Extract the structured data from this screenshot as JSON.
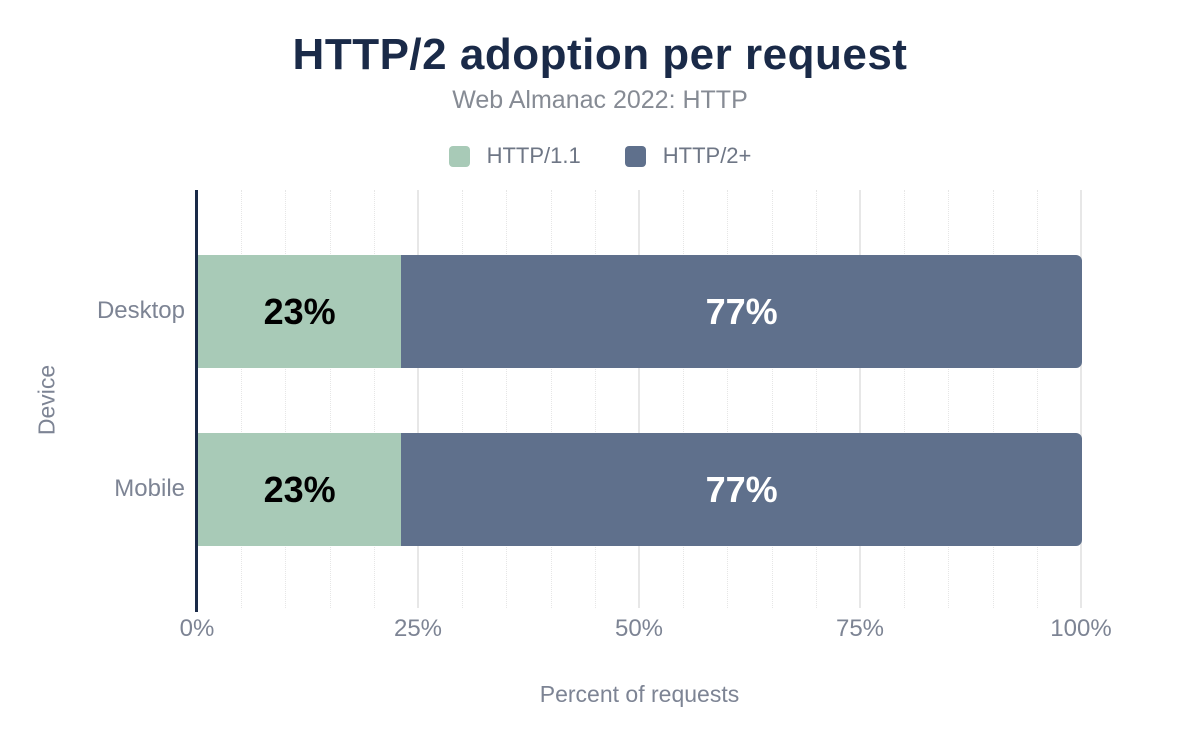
{
  "chart_data": {
    "type": "bar",
    "orientation": "horizontal",
    "stacked": true,
    "title": "HTTP/2 adoption per request",
    "subtitle": "Web Almanac 2022: HTTP",
    "categories": [
      "Desktop",
      "Mobile"
    ],
    "series": [
      {
        "name": "HTTP/1.1",
        "color": "#a8cab7",
        "label_color": "#000000",
        "values": [
          23,
          23
        ],
        "labels": [
          "23%",
          "23%"
        ]
      },
      {
        "name": "HTTP/2+",
        "color": "#5f708c",
        "label_color": "#ffffff",
        "values": [
          77,
          77
        ],
        "labels": [
          "77%",
          "77%"
        ]
      }
    ],
    "xlabel": "Percent of requests",
    "ylabel": "Device",
    "xlim": [
      0,
      100
    ],
    "x_ticks": [
      {
        "label": "0%",
        "value": 0
      },
      {
        "label": "25%",
        "value": 25
      },
      {
        "label": "50%",
        "value": 50
      },
      {
        "label": "75%",
        "value": 75
      },
      {
        "label": "100%",
        "value": 100
      }
    ],
    "grid": {
      "major_step": 25,
      "minor_step": 5,
      "minor_style": "dotted"
    },
    "legend_position": "top"
  },
  "palette": {
    "title_navy": "#1a2a48",
    "axis_line_navy": "#1a2a48",
    "subtitle_gray": "#868b94",
    "tick_gray": "#7d8494",
    "category_gray": "#7d8494",
    "legend_text_gray": "#6e7685",
    "axis_title_gray": "#7d8494",
    "grid_major": "#e7e7e7",
    "grid_minor": "#e6e6e6",
    "background": "#ffffff"
  }
}
